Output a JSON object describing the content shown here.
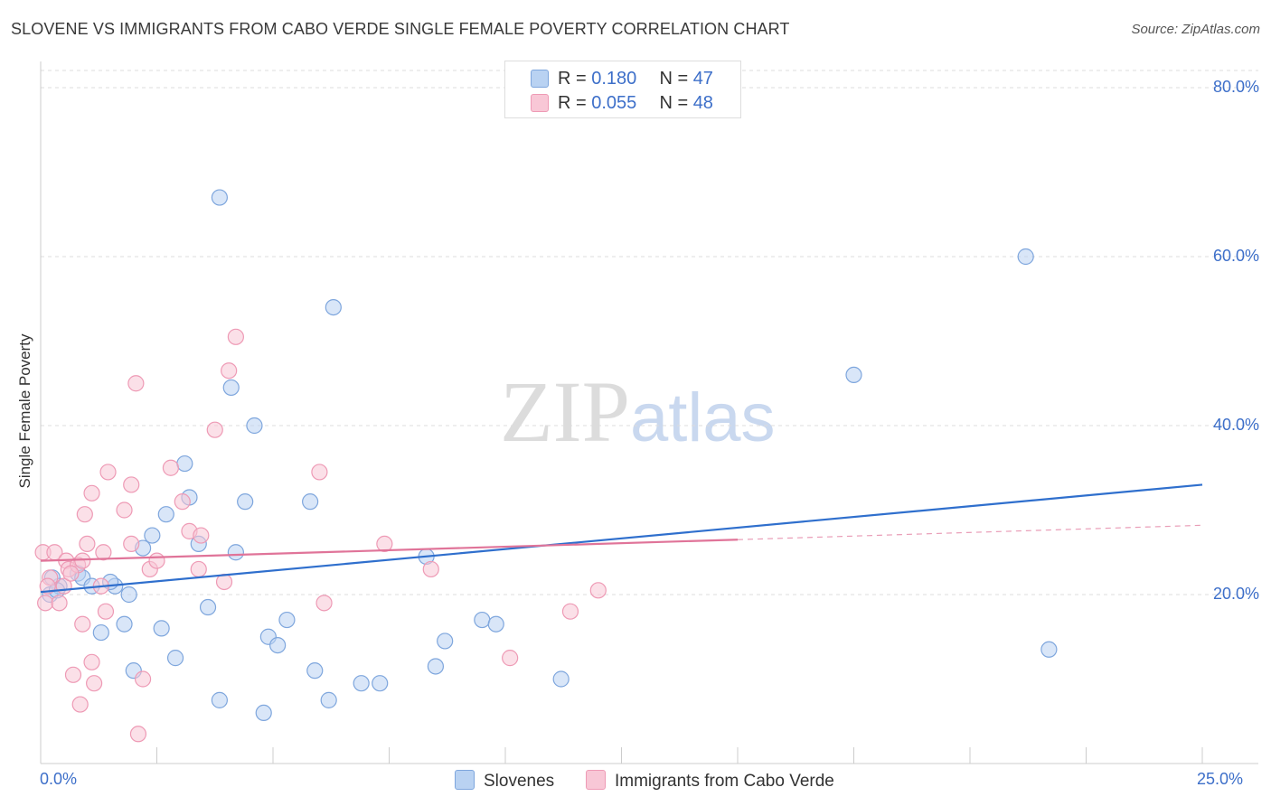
{
  "title": "SLOVENE VS IMMIGRANTS FROM CABO VERDE SINGLE FEMALE POVERTY CORRELATION CHART",
  "source": "Source: ZipAtlas.com",
  "watermark": {
    "zip": "ZIP",
    "atlas": "atlas"
  },
  "colors": {
    "blue_fill": "#b9d2f2",
    "blue_stroke": "#7ea6dd",
    "blue_line": "#2f6fcd",
    "pink_fill": "#f8c7d6",
    "pink_stroke": "#ee9ab5",
    "pink_line": "#e07499",
    "axis_text": "#3d6fc9",
    "grid": "#dddddd"
  },
  "legend_top": {
    "rows": [
      {
        "r_label": "R = ",
        "r_value": "0.180",
        "n_label": "N = ",
        "n_value": "47",
        "color": "#b9d2f2"
      },
      {
        "r_label": "R = ",
        "r_value": "0.055",
        "n_label": "N = ",
        "n_value": "48",
        "color": "#f8c7d6"
      }
    ]
  },
  "legend_bottom": {
    "items": [
      {
        "label": "Slovenes",
        "color": "#b9d2f2"
      },
      {
        "label": "Immigrants from Cabo Verde",
        "color": "#f8c7d6"
      }
    ]
  },
  "chart_data": {
    "type": "scatter",
    "title": "SLOVENE VS IMMIGRANTS FROM CABO VERDE SINGLE FEMALE POVERTY CORRELATION CHART",
    "xlabel": "",
    "ylabel": "Single Female Poverty",
    "xlim": [
      0,
      25
    ],
    "ylim": [
      0,
      80
    ],
    "x_tick_labels": [
      "0.0%",
      "25.0%"
    ],
    "y_ticks": [
      20,
      40,
      60,
      80
    ],
    "y_tick_labels": [
      "20.0%",
      "40.0%",
      "60.0%",
      "80.0%"
    ],
    "grid": true,
    "legend": "top-center",
    "series": [
      {
        "name": "Slovenes",
        "color": "#b9d2f2",
        "points": [
          [
            0.2,
            20.0
          ],
          [
            0.4,
            21.0
          ],
          [
            0.8,
            22.5
          ],
          [
            0.9,
            22.0
          ],
          [
            1.1,
            21.0
          ],
          [
            1.3,
            15.5
          ],
          [
            1.6,
            21.0
          ],
          [
            1.8,
            16.5
          ],
          [
            1.9,
            20.0
          ],
          [
            2.0,
            11.0
          ],
          [
            2.2,
            25.5
          ],
          [
            2.4,
            27.0
          ],
          [
            2.6,
            16.0
          ],
          [
            2.7,
            29.5
          ],
          [
            2.9,
            12.5
          ],
          [
            3.1,
            35.5
          ],
          [
            3.2,
            31.5
          ],
          [
            3.4,
            26.0
          ],
          [
            3.6,
            18.5
          ],
          [
            3.85,
            67.0
          ],
          [
            3.85,
            7.5
          ],
          [
            4.1,
            44.5
          ],
          [
            4.2,
            25.0
          ],
          [
            4.4,
            31.0
          ],
          [
            4.6,
            40.0
          ],
          [
            4.8,
            6.0
          ],
          [
            4.9,
            15.0
          ],
          [
            5.1,
            14.0
          ],
          [
            5.3,
            17.0
          ],
          [
            5.8,
            31.0
          ],
          [
            5.9,
            11.0
          ],
          [
            6.2,
            7.5
          ],
          [
            6.3,
            54.0
          ],
          [
            6.9,
            9.5
          ],
          [
            7.3,
            9.5
          ],
          [
            8.3,
            24.5
          ],
          [
            8.5,
            11.5
          ],
          [
            8.7,
            14.5
          ],
          [
            9.5,
            17.0
          ],
          [
            9.8,
            16.5
          ],
          [
            11.2,
            10.0
          ],
          [
            17.5,
            46.0
          ],
          [
            21.2,
            60.0
          ],
          [
            21.7,
            13.5
          ],
          [
            0.25,
            22.0
          ],
          [
            0.35,
            20.5
          ],
          [
            1.5,
            21.5
          ]
        ]
      },
      {
        "name": "Immigrants from Cabo Verde",
        "color": "#f8c7d6",
        "points": [
          [
            0.05,
            25.0
          ],
          [
            0.1,
            19.0
          ],
          [
            0.2,
            22.0
          ],
          [
            0.3,
            25.0
          ],
          [
            0.4,
            19.0
          ],
          [
            0.5,
            21.0
          ],
          [
            0.55,
            24.0
          ],
          [
            0.6,
            23.0
          ],
          [
            0.7,
            10.5
          ],
          [
            0.8,
            23.5
          ],
          [
            0.85,
            7.0
          ],
          [
            0.9,
            24.0
          ],
          [
            0.9,
            16.5
          ],
          [
            0.95,
            29.5
          ],
          [
            1.0,
            26.0
          ],
          [
            1.1,
            32.0
          ],
          [
            1.1,
            12.0
          ],
          [
            1.15,
            9.5
          ],
          [
            1.3,
            21.0
          ],
          [
            1.35,
            25.0
          ],
          [
            1.4,
            18.0
          ],
          [
            1.45,
            34.5
          ],
          [
            1.8,
            30.0
          ],
          [
            1.95,
            26.0
          ],
          [
            1.95,
            33.0
          ],
          [
            2.05,
            45.0
          ],
          [
            2.1,
            3.5
          ],
          [
            2.2,
            10.0
          ],
          [
            2.35,
            23.0
          ],
          [
            2.5,
            24.0
          ],
          [
            2.8,
            35.0
          ],
          [
            3.05,
            31.0
          ],
          [
            3.2,
            27.5
          ],
          [
            3.4,
            23.0
          ],
          [
            3.45,
            27.0
          ],
          [
            3.75,
            39.5
          ],
          [
            3.95,
            21.5
          ],
          [
            4.05,
            46.5
          ],
          [
            4.2,
            50.5
          ],
          [
            6.0,
            34.5
          ],
          [
            6.1,
            19.0
          ],
          [
            7.4,
            26.0
          ],
          [
            8.4,
            23.0
          ],
          [
            10.1,
            12.5
          ],
          [
            11.4,
            18.0
          ],
          [
            12.0,
            20.5
          ],
          [
            0.65,
            22.5
          ],
          [
            0.15,
            21.0
          ]
        ]
      }
    ],
    "trend_lines": [
      {
        "series": "Slovenes",
        "x": [
          0,
          25
        ],
        "y": [
          20.3,
          33.0
        ],
        "style": "solid"
      },
      {
        "series": "Immigrants from Cabo Verde",
        "x": [
          0,
          15
        ],
        "y": [
          24.0,
          26.5
        ],
        "style": "solid"
      },
      {
        "series": "Immigrants from Cabo Verde",
        "x": [
          15,
          25
        ],
        "y": [
          26.5,
          28.2
        ],
        "style": "dashed"
      }
    ]
  }
}
